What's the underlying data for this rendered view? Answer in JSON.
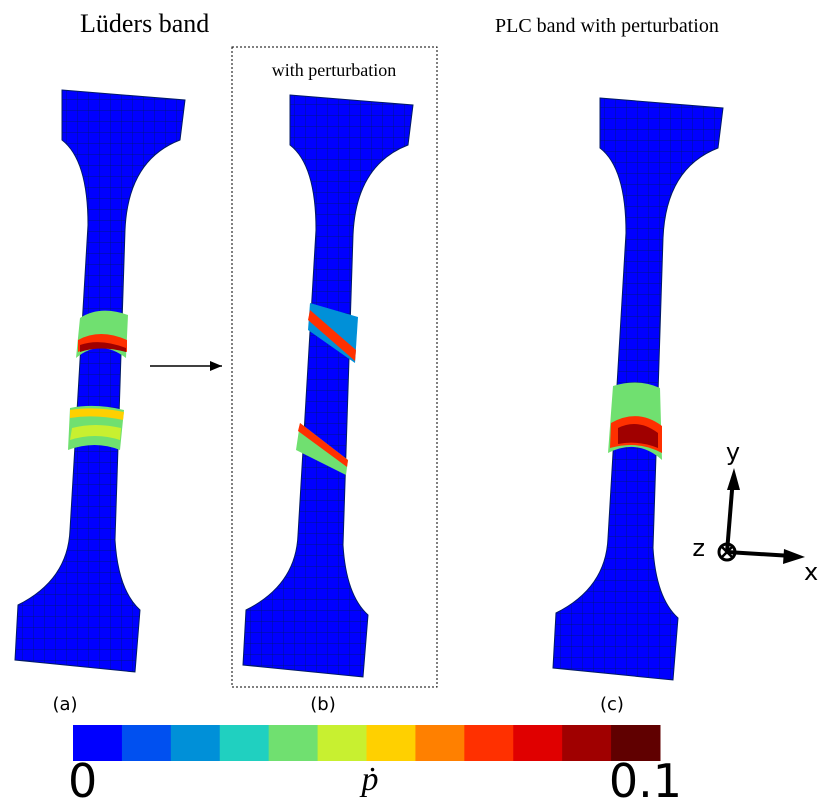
{
  "titles": {
    "left": "Lüders band",
    "box": "with perturbation",
    "right": "PLC band with perturbation"
  },
  "panels": [
    "(a)",
    "(b)",
    "(c)"
  ],
  "axes": {
    "x": "x",
    "y": "y",
    "z": "z"
  },
  "colorbar": {
    "min": "0",
    "max": "0.1",
    "label": "ṗ",
    "colors": [
      "#0000ff",
      "#0050f0",
      "#0090d8",
      "#20d0c0",
      "#70e070",
      "#c8f030",
      "#ffd000",
      "#ff8000",
      "#ff3000",
      "#e00000",
      "#a00000",
      "#600000"
    ]
  }
}
